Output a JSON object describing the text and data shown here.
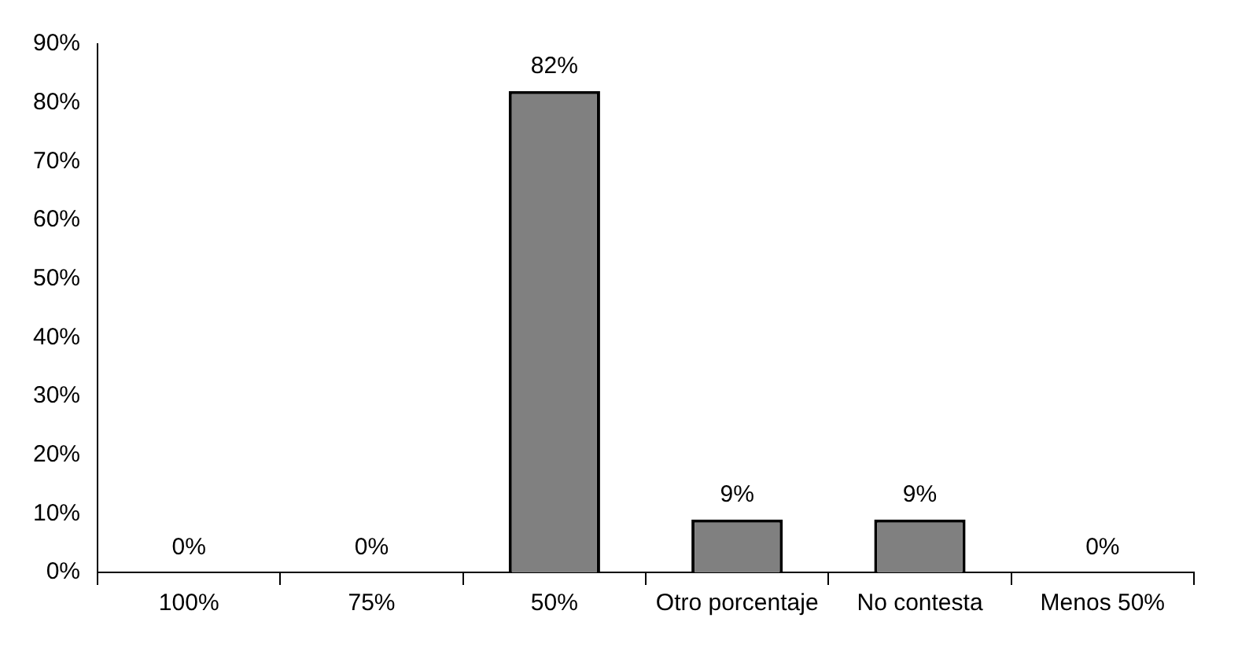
{
  "chart_data": {
    "type": "bar",
    "categories": [
      "100%",
      "75%",
      "50%",
      "Otro porcentaje",
      "No contesta",
      "Menos 50%"
    ],
    "values": [
      0,
      0,
      82,
      9,
      9,
      0
    ],
    "value_labels": [
      "0%",
      "0%",
      "82%",
      "9%",
      "9%",
      "0%"
    ],
    "color": "#808080",
    "ylim": [
      0,
      90
    ],
    "yticks": [
      {
        "value": 0,
        "label": "0%"
      },
      {
        "value": 10,
        "label": "10%"
      },
      {
        "value": 20,
        "label": "20%"
      },
      {
        "value": 30,
        "label": "30%"
      },
      {
        "value": 40,
        "label": "40%"
      },
      {
        "value": 50,
        "label": "50%"
      },
      {
        "value": 60,
        "label": "60%"
      },
      {
        "value": 70,
        "label": "70%"
      },
      {
        "value": 80,
        "label": "80%"
      },
      {
        "value": 90,
        "label": "90%"
      }
    ],
    "grid": false,
    "legend": false
  }
}
